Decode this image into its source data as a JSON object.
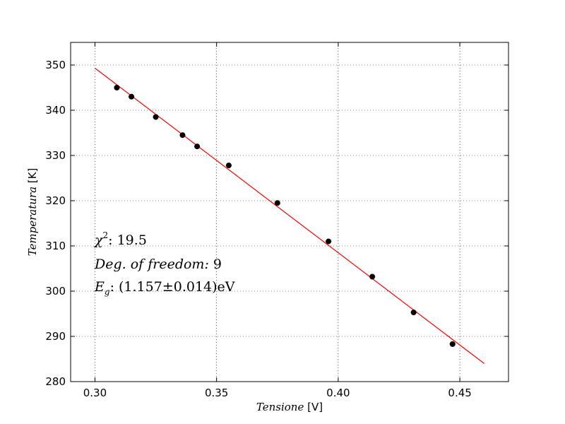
{
  "chart_data": {
    "type": "scatter",
    "xlabel": {
      "name": "Tensione",
      "unit": "[V]"
    },
    "ylabel": {
      "name": "Temperatura",
      "unit": "[K]"
    },
    "xlim": [
      0.29,
      0.47
    ],
    "ylim": [
      280,
      355
    ],
    "xticks": [
      0.3,
      0.35,
      0.4,
      0.45
    ],
    "xtick_labels": [
      "0.30",
      "0.35",
      "0.40",
      "0.45"
    ],
    "yticks": [
      280,
      290,
      300,
      310,
      320,
      330,
      340,
      350
    ],
    "ytick_labels": [
      "280",
      "290",
      "300",
      "310",
      "320",
      "330",
      "340",
      "350"
    ],
    "grid": true,
    "series": [
      {
        "type": "scatter",
        "color": "#000000",
        "x": [
          0.309,
          0.315,
          0.325,
          0.336,
          0.342,
          0.355,
          0.375,
          0.396,
          0.414,
          0.431,
          0.447
        ],
        "y": [
          345.0,
          343.0,
          338.5,
          334.5,
          332.0,
          327.8,
          319.5,
          311.0,
          303.2,
          295.3,
          288.3
        ]
      },
      {
        "type": "line",
        "color": "#ff0000",
        "x": [
          0.3,
          0.46
        ],
        "y": [
          349.3,
          284.0
        ]
      }
    ],
    "annotations": [
      {
        "prefix": "χ",
        "sup": "2",
        "text": ": 19.5"
      },
      {
        "prefix": "Deg. of freedom:",
        "text": " 9"
      },
      {
        "prefix": "E",
        "sub": "g",
        "text": ": (1.157±0.014)eV"
      }
    ]
  }
}
